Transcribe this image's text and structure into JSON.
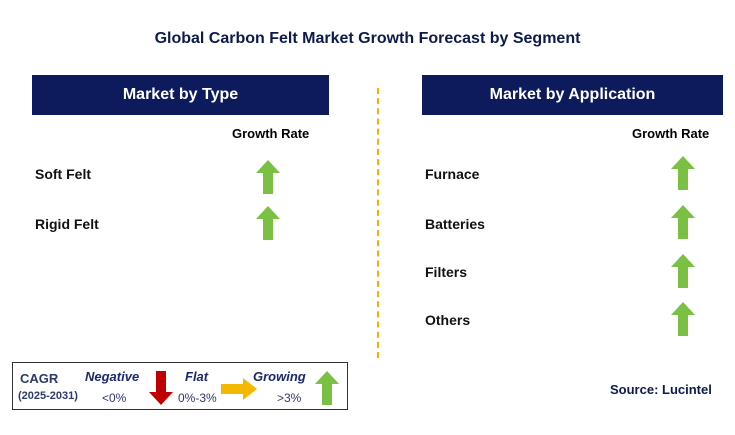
{
  "title": "Global Carbon Felt Market Growth Forecast by Segment",
  "left_panel": {
    "header": "Market by Type",
    "growth_header": "Growth Rate",
    "rows": [
      {
        "label": "Soft Felt",
        "trend": "growing"
      },
      {
        "label": "Rigid Felt",
        "trend": "growing"
      }
    ]
  },
  "right_panel": {
    "header": "Market by Application",
    "growth_header": "Growth Rate",
    "rows": [
      {
        "label": "Furnace",
        "trend": "growing"
      },
      {
        "label": "Batteries",
        "trend": "growing"
      },
      {
        "label": "Filters",
        "trend": "growing"
      },
      {
        "label": "Others",
        "trend": "growing"
      }
    ]
  },
  "legend": {
    "cagr_label": "CAGR",
    "period": "(2025-2031)",
    "negative_label": "Negative",
    "negative_range": "<0%",
    "flat_label": "Flat",
    "flat_range": "0%-3%",
    "growing_label": "Growing",
    "growing_range": ">3%"
  },
  "source": "Source: Lucintel",
  "colors": {
    "header_bg": "#0d1a5c",
    "growing_arrow": "#7ac143",
    "negative_arrow": "#c00000",
    "flat_arrow": "#f5b800",
    "divider": "#f0b400"
  }
}
